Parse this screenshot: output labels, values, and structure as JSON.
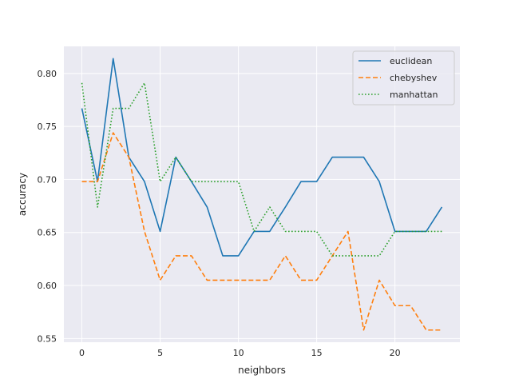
{
  "chart_data": {
    "type": "line",
    "xlabel": "neighbors",
    "ylabel": "accuracy",
    "xlim": [
      -1.15,
      24.15
    ],
    "ylim": [
      0.5465,
      0.8255
    ],
    "xticks": [
      0,
      5,
      10,
      15,
      20
    ],
    "yticks": [
      0.55,
      0.6,
      0.65,
      0.7,
      0.75,
      0.8
    ],
    "ytick_labels": [
      "0.55",
      "0.60",
      "0.65",
      "0.70",
      "0.75",
      "0.80"
    ],
    "grid": true,
    "legend_position": "upper right",
    "x": [
      0,
      1,
      2,
      3,
      4,
      5,
      6,
      7,
      8,
      9,
      10,
      11,
      12,
      13,
      14,
      15,
      16,
      17,
      18,
      19,
      20,
      21,
      22,
      23
    ],
    "series": [
      {
        "name": "euclidean",
        "color": "#1f77b4",
        "dash": "solid",
        "values": [
          0.767,
          0.698,
          0.814,
          0.721,
          0.698,
          0.651,
          0.721,
          0.698,
          0.674,
          0.628,
          0.628,
          0.651,
          0.651,
          0.674,
          0.698,
          0.698,
          0.721,
          0.721,
          0.721,
          0.698,
          0.651,
          0.651,
          0.651,
          0.674
        ]
      },
      {
        "name": "chebyshev",
        "color": "#ff7f0e",
        "dash": "dashed",
        "values": [
          0.698,
          0.698,
          0.744,
          0.721,
          0.651,
          0.605,
          0.628,
          0.628,
          0.605,
          0.605,
          0.605,
          0.605,
          0.605,
          0.628,
          0.605,
          0.605,
          0.628,
          0.651,
          0.558,
          0.605,
          0.581,
          0.581,
          0.558,
          0.558
        ]
      },
      {
        "name": "manhattan",
        "color": "#2ca02c",
        "dash": "dotted",
        "values": [
          0.791,
          0.674,
          0.767,
          0.767,
          0.791,
          0.698,
          0.721,
          0.698,
          0.698,
          0.698,
          0.698,
          0.651,
          0.674,
          0.651,
          0.651,
          0.651,
          0.628,
          0.628,
          0.628,
          0.628,
          0.651,
          0.651,
          0.651,
          0.651
        ]
      }
    ]
  }
}
